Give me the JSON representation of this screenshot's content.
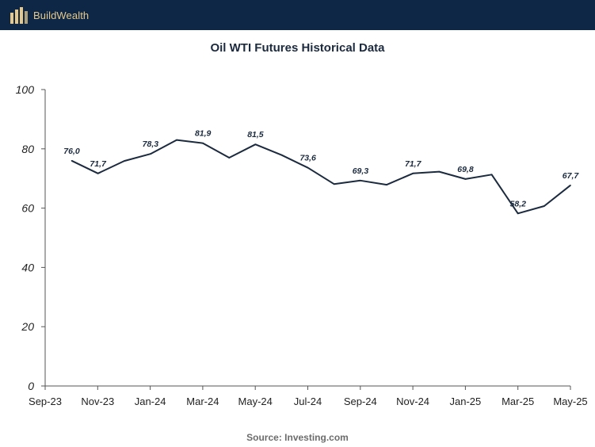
{
  "header": {
    "brand": "BuildWealth",
    "logo_icon": "buildwealth-logo-icon"
  },
  "colors": {
    "header_bg": "#0f2746",
    "logo_gold": "#e6c98a",
    "line": "#1b2a3e",
    "axis": "#555555"
  },
  "chart_data": {
    "type": "line",
    "title": "Oil WTI Futures Historical Data",
    "source": "Source: Investing.com",
    "xlabel": "",
    "ylabel": "",
    "ylim": [
      0,
      100
    ],
    "yticks": [
      "0",
      "20",
      "40",
      "60",
      "80",
      "100"
    ],
    "xticks": [
      "Sep-23",
      "Nov-23",
      "Jan-24",
      "Mar-24",
      "May-24",
      "Jul-24",
      "Sep-24",
      "Nov-24",
      "Jan-25",
      "Mar-25",
      "May-25"
    ],
    "grid": false,
    "series": [
      {
        "values": [
          76.0,
          71.7,
          75.9,
          78.3,
          83.0,
          81.9,
          77.0,
          81.5,
          77.9,
          73.6,
          68.1,
          69.3,
          67.9,
          71.7,
          72.3,
          69.8,
          71.3,
          58.2,
          60.7,
          67.7
        ]
      }
    ],
    "point_labels": [
      {
        "index": 0,
        "text": "76,0"
      },
      {
        "index": 1,
        "text": "71,7"
      },
      {
        "index": 3,
        "text": "78,3"
      },
      {
        "index": 5,
        "text": "81,9"
      },
      {
        "index": 7,
        "text": "81,5"
      },
      {
        "index": 9,
        "text": "73,6"
      },
      {
        "index": 11,
        "text": "69,3"
      },
      {
        "index": 13,
        "text": "71,7"
      },
      {
        "index": 15,
        "text": "69,8"
      },
      {
        "index": 17,
        "text": "58,2"
      },
      {
        "index": 19,
        "text": "67,7"
      }
    ]
  }
}
